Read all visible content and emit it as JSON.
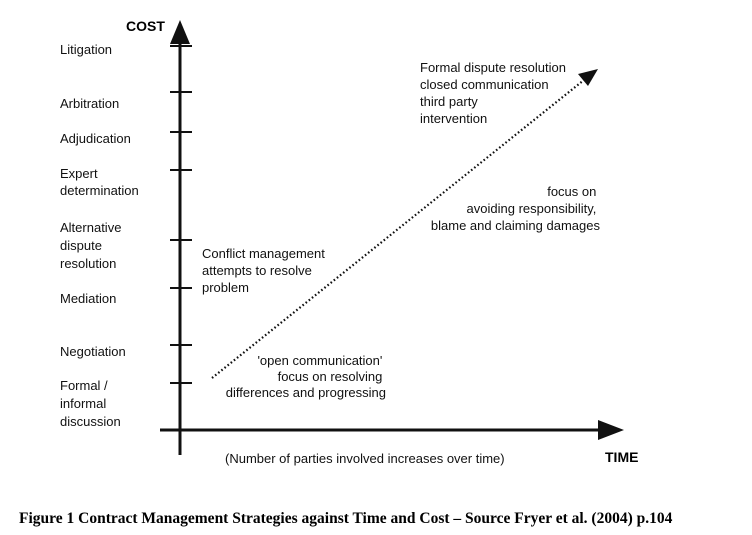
{
  "axes": {
    "y_title": "COST",
    "x_title": "TIME",
    "x_note": "(Number of parties involved increases over time)"
  },
  "strategies": [
    [
      "Litigation"
    ],
    [
      "Arbitration"
    ],
    [
      "Adjudication"
    ],
    [
      "Expert",
      "determination"
    ],
    [
      "Alternative",
      "dispute",
      "resolution"
    ],
    [
      "Mediation"
    ],
    [
      "Negotiation"
    ],
    [
      "Formal /",
      "informal",
      "discussion"
    ]
  ],
  "annotations": {
    "top": [
      "Formal dispute resolution",
      "closed communication",
      "third party",
      "intervention"
    ],
    "focus": [
      "focus on",
      "avoiding responsibility,",
      "blame and claiming damages"
    ],
    "conflict": [
      "Conflict management",
      "attempts to resolve",
      "problem"
    ],
    "open": [
      "'open communication'",
      "focus on resolving",
      "differences and progressing"
    ]
  },
  "caption": "Figure 1 Contract Management Strategies against Time and Cost – Source Fryer et al. (2004) p.104",
  "colors": {
    "ink": "#111111"
  }
}
